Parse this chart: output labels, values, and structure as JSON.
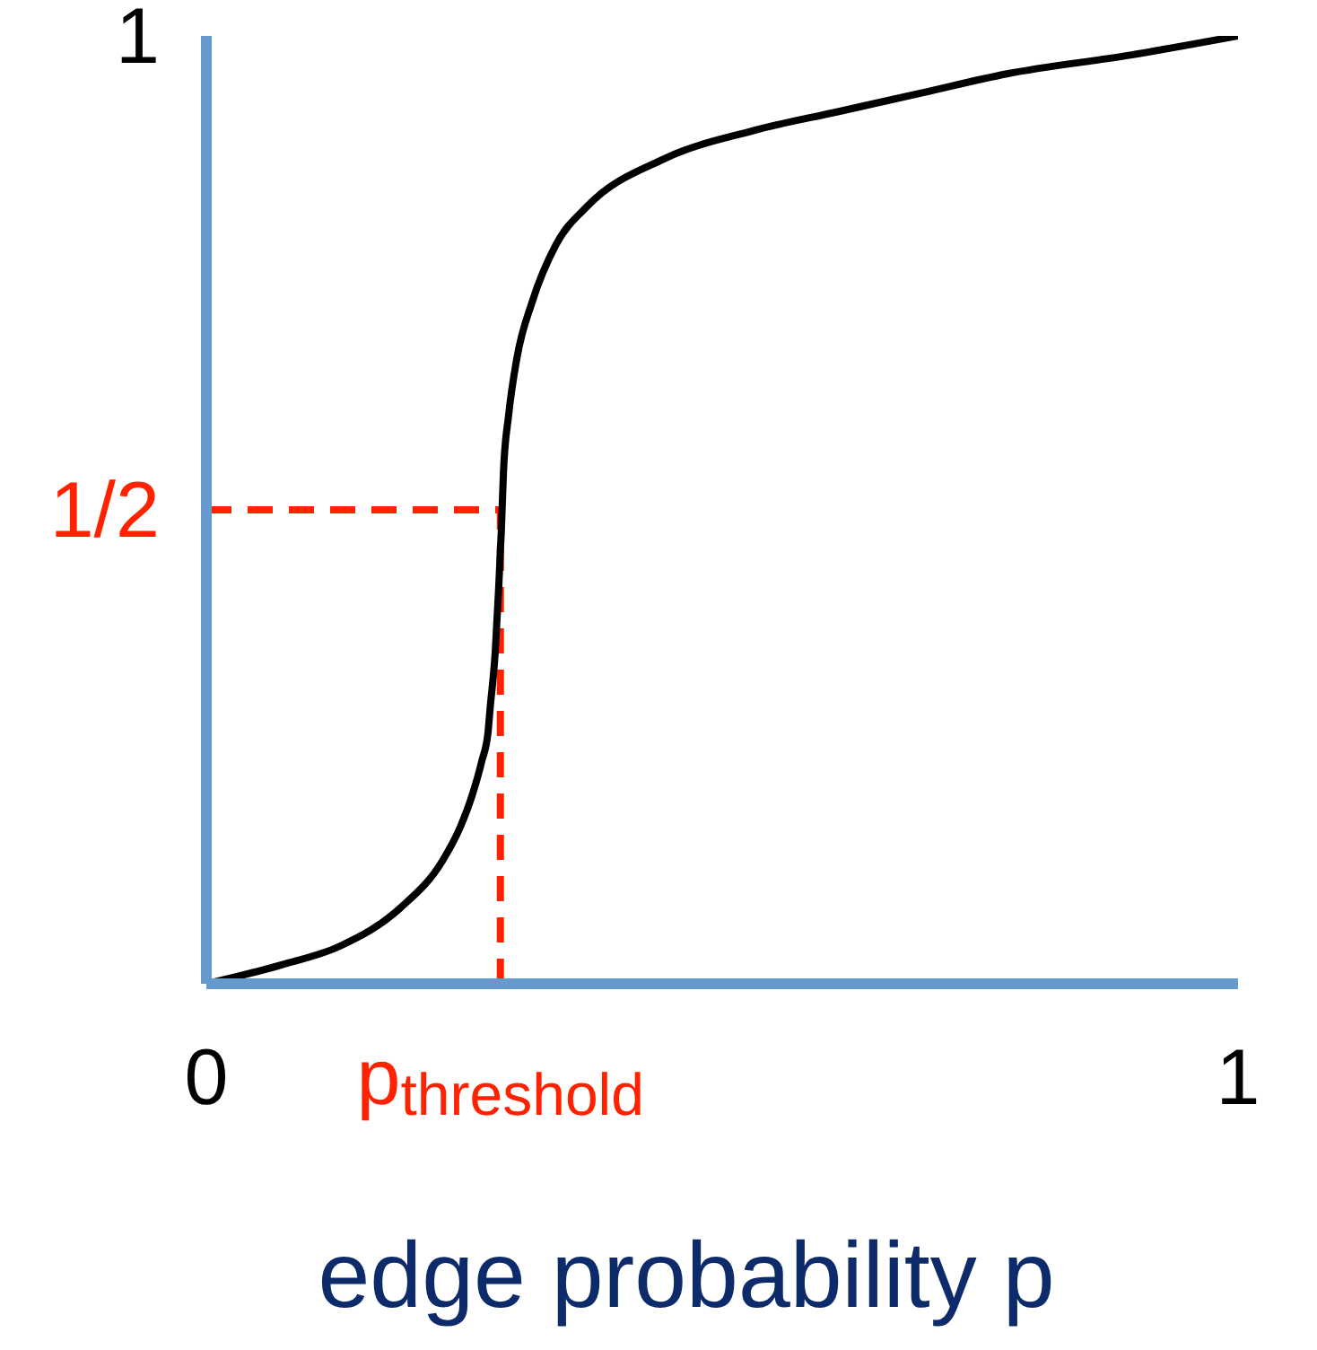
{
  "chart_data": {
    "type": "line",
    "xlabel": "edge probability p",
    "x": [
      0,
      0.073,
      0.13,
      0.188,
      0.229,
      0.246,
      0.258,
      0.267,
      0.273,
      0.275,
      0.28,
      0.283,
      0.286,
      0.288,
      0.293,
      0.301,
      0.316,
      0.339,
      0.369,
      0.443,
      0.53,
      0.612,
      0.694,
      0.776,
      0.897,
      1
    ],
    "series": [
      {
        "color": "#000000",
        "values": [
          0,
          0.02,
          0.04,
          0.08,
          0.13,
          0.165,
          0.2,
          0.235,
          0.265,
          0.29,
          0.35,
          0.41,
          0.48,
          0.54,
          0.6,
          0.66,
          0.72,
          0.78,
          0.82,
          0.87,
          0.9,
          0.92,
          0.94,
          0.96,
          0.98,
          1
        ]
      }
    ],
    "xlim": [
      0,
      1
    ],
    "ylim": [
      0,
      1
    ],
    "xticks": [
      0,
      {
        "value": 0.285,
        "label": "p$_{threshold}$"
      },
      1
    ],
    "yticks": [
      {
        "value": 0.5,
        "label": "1/2"
      },
      1
    ],
    "ref_lines": [
      {
        "axis": "x",
        "value": 0.285,
        "color": "#ff2200",
        "line_style": "dashed"
      },
      {
        "axis": "y",
        "value": 0.5,
        "color": "#ff2200",
        "line_style": "dashed"
      }
    ],
    "marker": "none",
    "line_style": "solid"
  }
}
